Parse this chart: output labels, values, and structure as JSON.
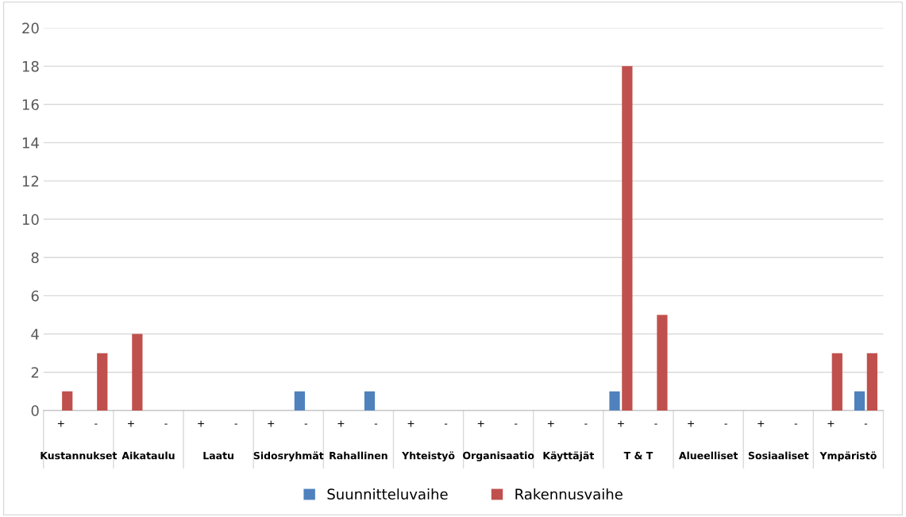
{
  "chart_data": {
    "type": "bar",
    "categories": [
      "+",
      "-",
      "+",
      "-",
      "+",
      "-",
      "+",
      "-",
      "+",
      "-",
      "+",
      "-",
      "+",
      "-",
      "+",
      "-",
      "+",
      "-",
      "+",
      "-",
      "+",
      "-",
      "+",
      "-"
    ],
    "annotations": [
      "Kustannukset",
      "Aikataulu",
      "Laatu",
      "Sidosryhmät",
      "Rahallinen",
      "Yhteistyö",
      "Organisaatio",
      "Käyttäjät",
      "T & T",
      "Alueelliset",
      "Sosiaaliset",
      "Ympäristö"
    ],
    "series": [
      {
        "name": "Suunnitteluvaihe",
        "color": "#4f81bd",
        "values": [
          0,
          0,
          0,
          0,
          0,
          0,
          0,
          1,
          0,
          1,
          0,
          0,
          0,
          0,
          0,
          0,
          1,
          0,
          0,
          0,
          0,
          0,
          0,
          1
        ]
      },
      {
        "name": "Rakennusvaihe",
        "color": "#c0504d",
        "values": [
          1,
          3,
          4,
          0,
          0,
          0,
          0,
          0,
          0,
          0,
          0,
          0,
          0,
          0,
          0,
          0,
          18,
          5,
          0,
          0,
          0,
          0,
          3,
          3
        ]
      }
    ],
    "ylim": [
      0,
      20
    ],
    "yticks": [
      0,
      2,
      4,
      6,
      8,
      10,
      12,
      14,
      16,
      18,
      20
    ],
    "grid": "y",
    "legend": "bottom"
  }
}
